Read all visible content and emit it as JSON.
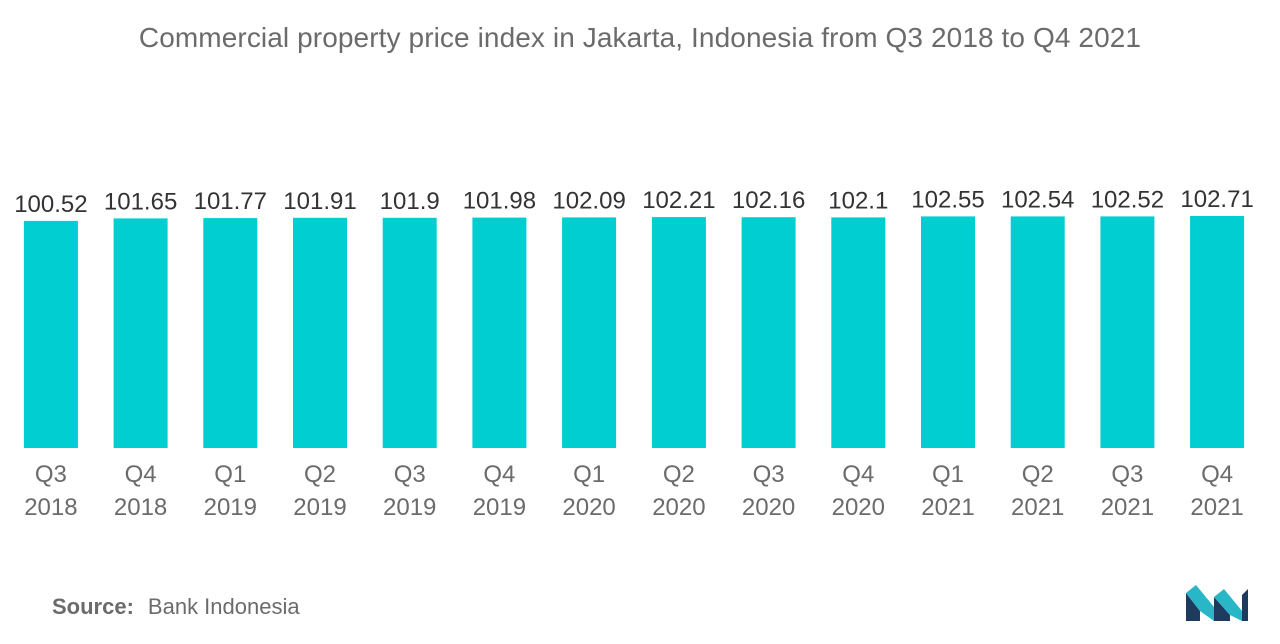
{
  "title": "Commercial property price index in Jakarta, Indonesia from Q3 2018 to Q4 2021",
  "source": {
    "label": "Source:",
    "text": "Bank Indonesia"
  },
  "colors": {
    "bar": "#00CED1",
    "text": "#6b6b6b",
    "value_label": "#333333",
    "logo_dark": "#1e3a5f",
    "logo_light": "#29b6c6"
  },
  "logo": {
    "icon": "mordor-intelligence-logo-icon"
  },
  "chart_data": {
    "type": "bar",
    "title": "Commercial property price index in Jakarta, Indonesia from Q3 2018 to Q4 2021",
    "categories": [
      [
        "Q3",
        "2018"
      ],
      [
        "Q4",
        "2018"
      ],
      [
        "Q1",
        "2019"
      ],
      [
        "Q2",
        "2019"
      ],
      [
        "Q3",
        "2019"
      ],
      [
        "Q4",
        "2019"
      ],
      [
        "Q1",
        "2020"
      ],
      [
        "Q2",
        "2020"
      ],
      [
        "Q3",
        "2020"
      ],
      [
        "Q4",
        "2020"
      ],
      [
        "Q1",
        "2021"
      ],
      [
        "Q2",
        "2021"
      ],
      [
        "Q3",
        "2021"
      ],
      [
        "Q4",
        "2021"
      ]
    ],
    "values": [
      100.52,
      101.65,
      101.77,
      101.91,
      101.9,
      101.98,
      102.09,
      102.21,
      102.16,
      102.1,
      102.55,
      102.54,
      102.52,
      102.71
    ],
    "value_labels": [
      "100.52",
      "101.65",
      "101.77",
      "101.91",
      "101.9",
      "101.98",
      "102.09",
      "102.21",
      "102.16",
      "102.1",
      "102.55",
      "102.54",
      "102.52",
      "102.71"
    ],
    "xlabel": "",
    "ylabel": "",
    "ylim": [
      0,
      102.71
    ],
    "grid": false,
    "legend": "none"
  }
}
